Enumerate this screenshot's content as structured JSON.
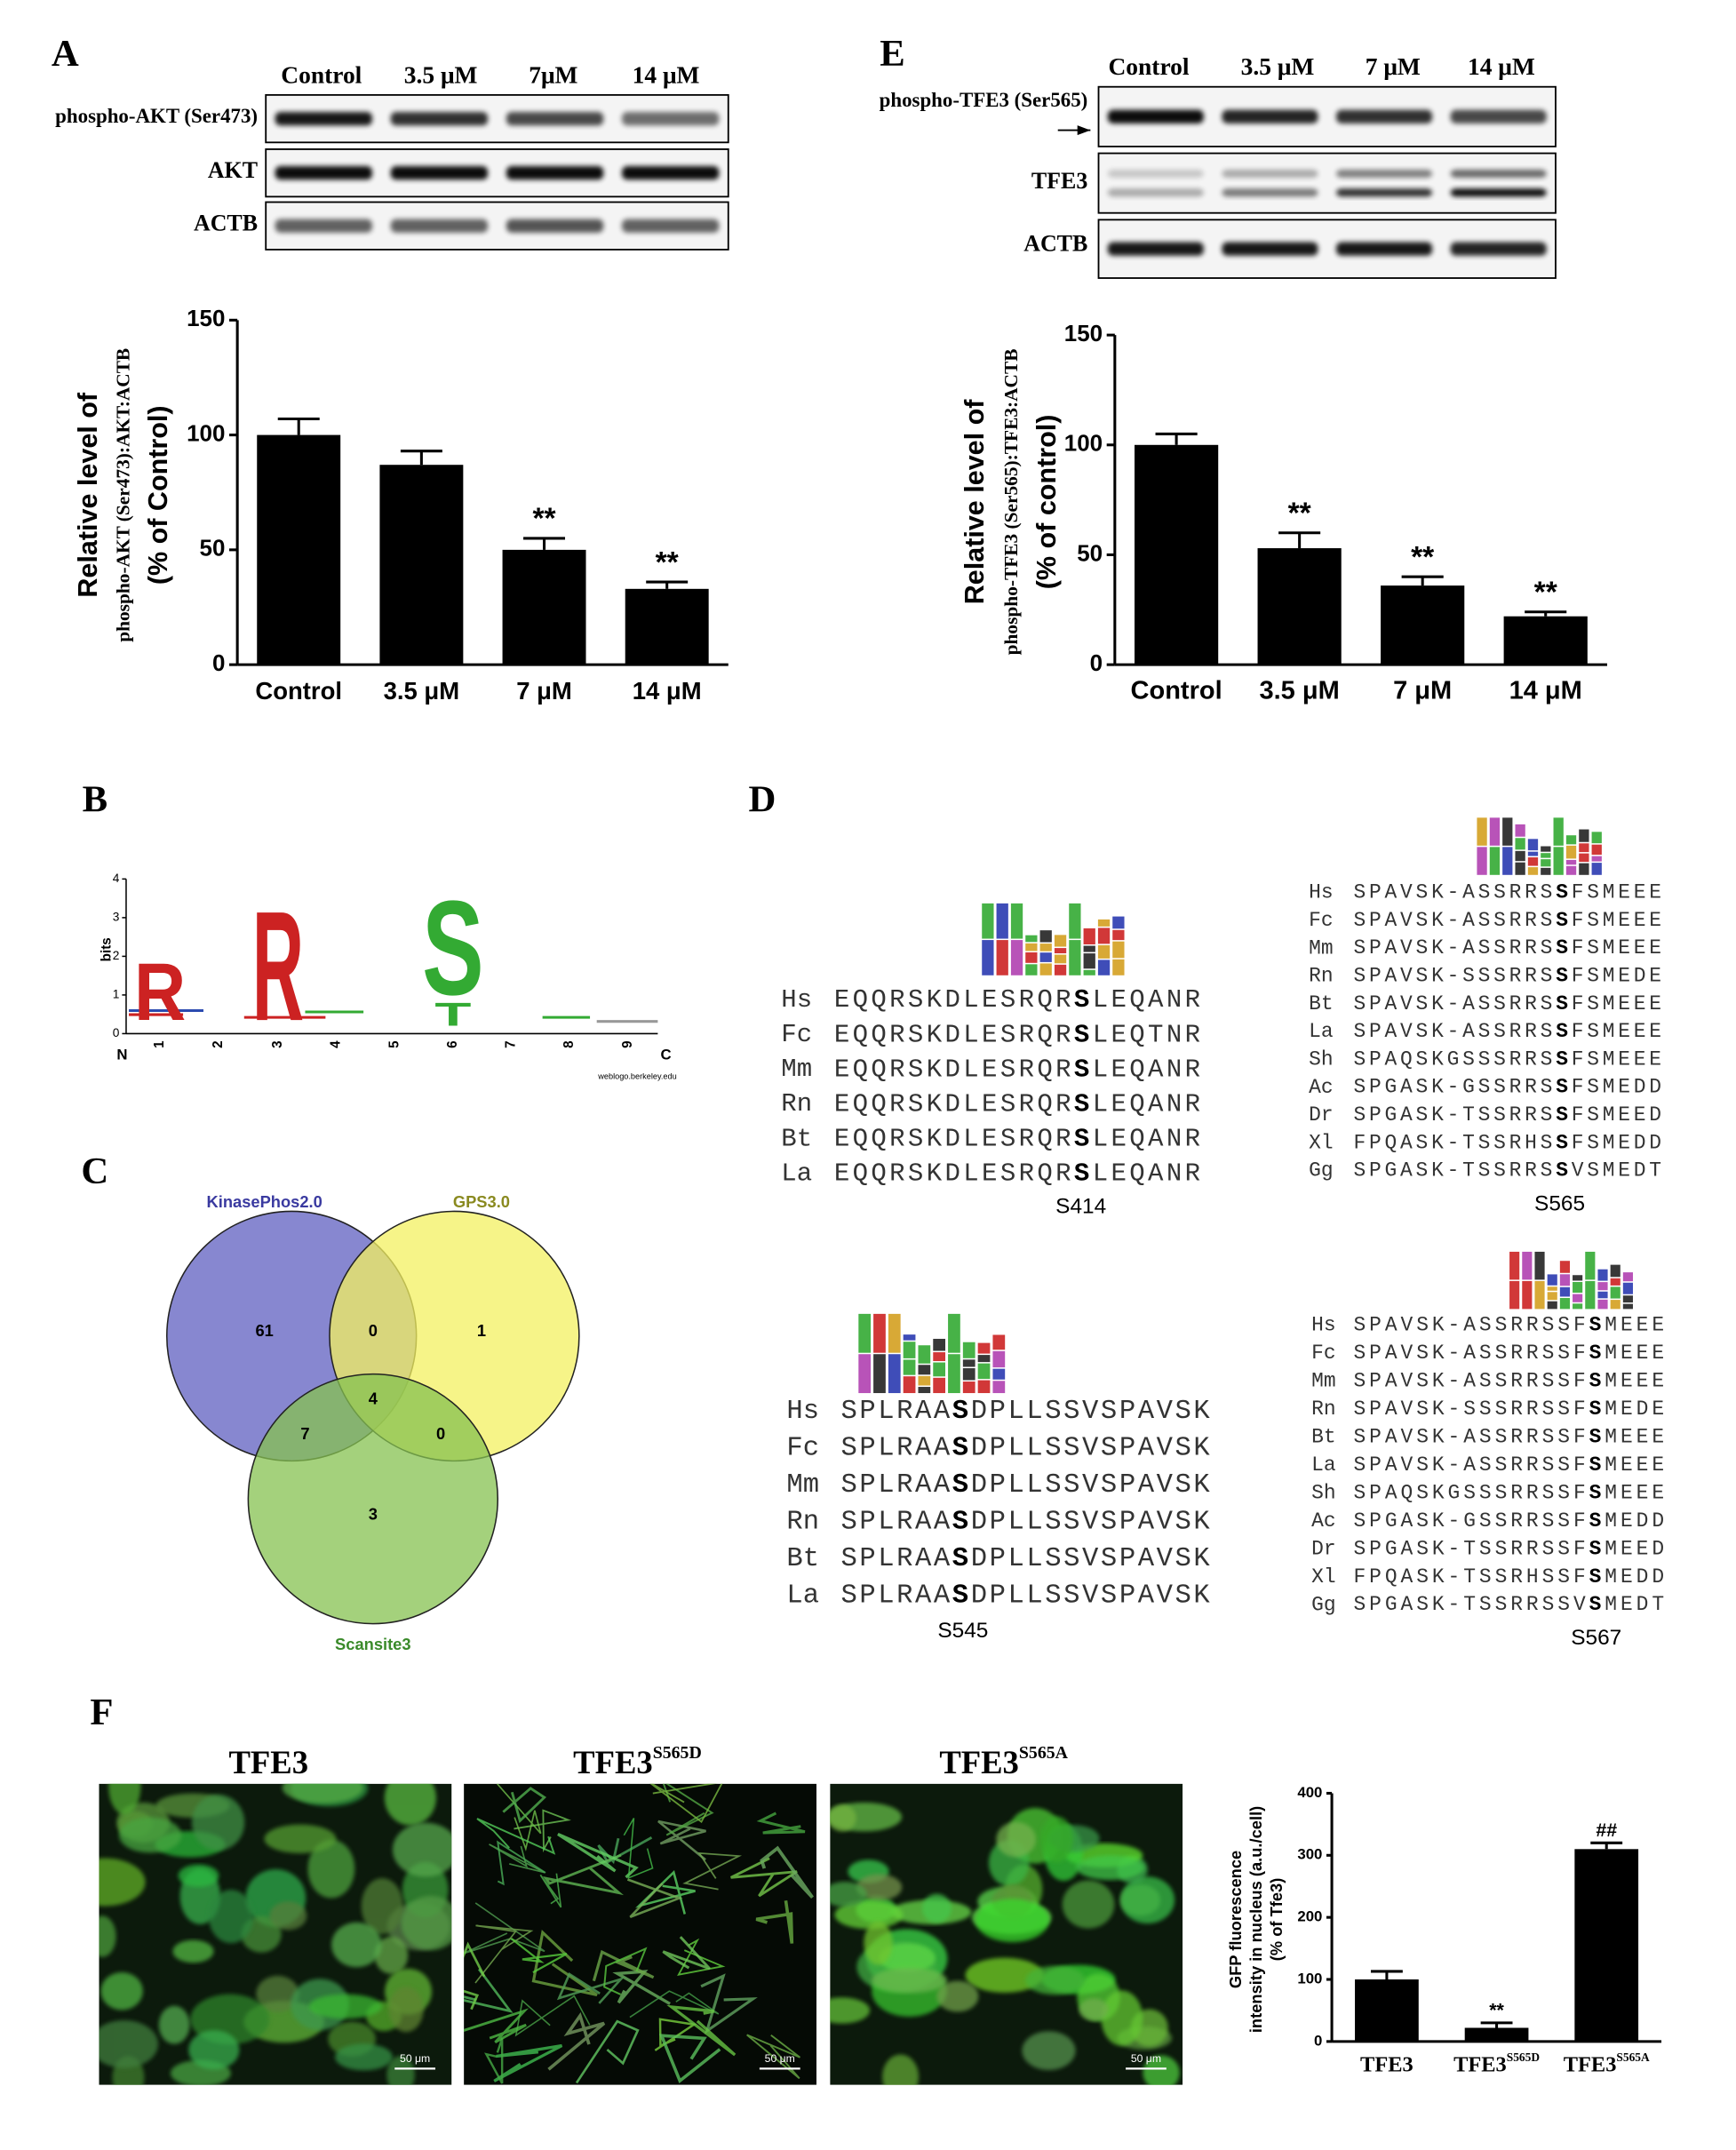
{
  "panel_labels": [
    "A",
    "E",
    "B",
    "D",
    "C",
    "F"
  ],
  "blots": [
    {
      "columns": [
        "Control",
        "3.5 μM",
        "7μM",
        "14 μM"
      ],
      "rows": [
        "phospho-AKT (Ser473)",
        "AKT",
        "ACTB"
      ]
    },
    {
      "columns": [
        "Control",
        "3.5 μM",
        "7 μM",
        "14 μM"
      ],
      "rows": [
        "phospho-TFE3 (Ser565)",
        "TFE3",
        "ACTB"
      ]
    }
  ],
  "chart_data": [
    {
      "type": "bar",
      "categories": [
        "Control",
        "3.5 μM",
        "7 μM",
        "14 μM"
      ],
      "values": [
        100,
        87,
        50,
        33
      ],
      "errors": [
        7,
        6,
        5,
        3
      ],
      "annotations": [
        null,
        null,
        "**",
        "**"
      ],
      "color": "#000000",
      "y_label_lines": [
        "Relative level of",
        "phospho-AKT (Ser473):AKT:ACTB",
        "(% of Control)"
      ],
      "ylim": [
        0,
        150
      ],
      "yticks": [
        0,
        50,
        100,
        150
      ]
    },
    {
      "type": "bar",
      "categories": [
        "Control",
        "3.5 μM",
        "7 μM",
        "14 μM"
      ],
      "values": [
        100,
        53,
        36,
        22
      ],
      "errors": [
        5,
        7,
        4,
        2
      ],
      "annotations": [
        null,
        "**",
        "**",
        "**"
      ],
      "color": "#000000",
      "y_label_lines": [
        "Relative level of",
        "phospho-TFE3 (Ser565):TFE3:ACTB",
        "(% of control)"
      ],
      "ylim": [
        0,
        150
      ],
      "yticks": [
        0,
        50,
        100,
        150
      ]
    },
    {
      "type": "bar",
      "categories": [
        "TFE3",
        "TFE3",
        "TFE3"
      ],
      "category_superscripts": [
        null,
        "S565D",
        "S565A"
      ],
      "values": [
        100,
        22,
        310
      ],
      "errors": [
        13,
        8,
        10
      ],
      "annotations": [
        null,
        "**",
        "##"
      ],
      "color": "#000000",
      "y_label_lines": [
        "GFP fluorescence",
        "intensity in nucleus (a.u./cell)",
        "(% of Tfe3)"
      ],
      "ylim": [
        0,
        400
      ],
      "yticks": [
        0,
        100,
        200,
        300,
        400
      ]
    }
  ],
  "logo": {
    "y_label": "bits",
    "yticks": [
      0,
      1,
      2,
      3,
      4
    ],
    "positions": [
      1,
      2,
      3,
      4,
      5,
      6,
      7,
      8,
      9
    ],
    "start": "N",
    "end": "C",
    "letters": [
      "R",
      "R",
      "S",
      "T"
    ],
    "credit": "weblogo.berkeley.edu"
  },
  "venn": {
    "sets": [
      "KinasePhos2.0",
      "GPS3.0",
      "Scansite3"
    ],
    "counts": [
      61,
      0,
      1,
      7,
      4,
      0,
      3
    ]
  },
  "alignments": [
    {
      "site": "S414",
      "rows": [
        {
          "species": "Hs",
          "pre": "EQQRSKDLESRQR",
          "mid": "S",
          "post": "LEQANR"
        },
        {
          "species": "Fc",
          "pre": "EQQRSKDLESRQR",
          "mid": "S",
          "post": "LEQTNR"
        },
        {
          "species": "Mm",
          "pre": "EQQRSKDLESRQR",
          "mid": "S",
          "post": "LEQANR"
        },
        {
          "species": "Rn",
          "pre": "EQQRSKDLESRQR",
          "mid": "S",
          "post": "LEQANR"
        },
        {
          "species": "Bt",
          "pre": "EQQRSKDLESRQR",
          "mid": "S",
          "post": "LEQANR"
        },
        {
          "species": "La",
          "pre": "EQQRSKDLESRQR",
          "mid": "S",
          "post": "LEQANR"
        }
      ]
    },
    {
      "site": "S565",
      "rows": [
        {
          "species": "Hs",
          "pre": "SPAVSK-ASSRRS",
          "mid": "S",
          "post": "FSMEEE"
        },
        {
          "species": "Fc",
          "pre": "SPAVSK-ASSRRS",
          "mid": "S",
          "post": "FSMEEE"
        },
        {
          "species": "Mm",
          "pre": "SPAVSK-ASSRRS",
          "mid": "S",
          "post": "FSMEEE"
        },
        {
          "species": "Rn",
          "pre": "SPAVSK-SSSRRS",
          "mid": "S",
          "post": "FSMEDE"
        },
        {
          "species": "Bt",
          "pre": "SPAVSK-ASSRRS",
          "mid": "S",
          "post": "FSMEEE"
        },
        {
          "species": "La",
          "pre": "SPAVSK-ASSRRS",
          "mid": "S",
          "post": "FSMEEE"
        },
        {
          "species": "Sh",
          "pre": "SPAQSKGSSSRRS",
          "mid": "S",
          "post": "FSMEEE"
        },
        {
          "species": "Ac",
          "pre": "SPGASK-GSSRRS",
          "mid": "S",
          "post": "FSMEDD"
        },
        {
          "species": "Dr",
          "pre": "SPGASK-TSSRRS",
          "mid": "S",
          "post": "FSMEED"
        },
        {
          "species": "Xl",
          "pre": "FPQASK-TSSRHS",
          "mid": "S",
          "post": "FSMEDD"
        },
        {
          "species": "Gg",
          "pre": "SPGASK-TSSRRS",
          "mid": "S",
          "post": "VSMEDT"
        }
      ]
    },
    {
      "site": "S545",
      "rows": [
        {
          "species": "Hs",
          "pre": "SPLRAA",
          "mid": "S",
          "post": "DPLLSSVSPAVSK"
        },
        {
          "species": "Fc",
          "pre": "SPLRAA",
          "mid": "S",
          "post": "DPLLSSVSPAVSK"
        },
        {
          "species": "Mm",
          "pre": "SPLRAA",
          "mid": "S",
          "post": "DPLLSSVSPAVSK"
        },
        {
          "species": "Rn",
          "pre": "SPLRAA",
          "mid": "S",
          "post": "DPLLSSVSPAVSK"
        },
        {
          "species": "Bt",
          "pre": "SPLRAA",
          "mid": "S",
          "post": "DPLLSSVSPAVSK"
        },
        {
          "species": "La",
          "pre": "SPLRAA",
          "mid": "S",
          "post": "DPLLSSVSPAVSK"
        }
      ]
    },
    {
      "site": "S567",
      "rows": [
        {
          "species": "Hs",
          "pre": "SPAVSK-ASSRRSSF",
          "mid": "S",
          "post": "MEEE"
        },
        {
          "species": "Fc",
          "pre": "SPAVSK-ASSRRSSF",
          "mid": "S",
          "post": "MEEE"
        },
        {
          "species": "Mm",
          "pre": "SPAVSK-ASSRRSSF",
          "mid": "S",
          "post": "MEEE"
        },
        {
          "species": "Rn",
          "pre": "SPAVSK-SSSRRSSF",
          "mid": "S",
          "post": "MEDE"
        },
        {
          "species": "Bt",
          "pre": "SPAVSK-ASSRRSSF",
          "mid": "S",
          "post": "MEEE"
        },
        {
          "species": "La",
          "pre": "SPAVSK-ASSRRSSF",
          "mid": "S",
          "post": "MEEE"
        },
        {
          "species": "Sh",
          "pre": "SPAQSKGSSSRRSSF",
          "mid": "S",
          "post": "MEEE"
        },
        {
          "species": "Ac",
          "pre": "SPGASK-GSSRRSSF",
          "mid": "S",
          "post": "MEDD"
        },
        {
          "species": "Dr",
          "pre": "SPGASK-TSSRRSSF",
          "mid": "S",
          "post": "MEED"
        },
        {
          "species": "Xl",
          "pre": "FPQASK-TSSRHSSF",
          "mid": "S",
          "post": "MEDD"
        },
        {
          "species": "Gg",
          "pre": "SPGASK-TSSRRSSV",
          "mid": "S",
          "post": "MEDT"
        }
      ]
    }
  ],
  "micrographs": {
    "labels": [
      "TFE3",
      "TFE3",
      "TFE3"
    ],
    "superscripts": [
      null,
      "S565D",
      "S565A"
    ],
    "scale_bar": "50 μm"
  }
}
